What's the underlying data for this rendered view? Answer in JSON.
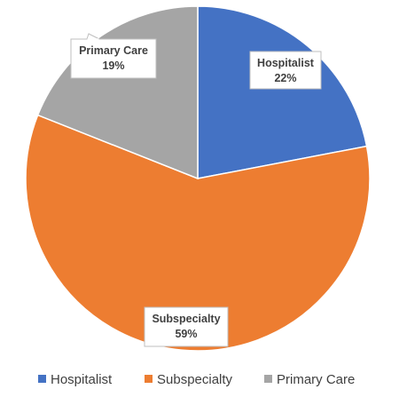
{
  "chart_data": {
    "type": "pie",
    "title": "",
    "categories": [
      "Hospitalist",
      "Subspecialty",
      "Primary Care"
    ],
    "values": [
      22,
      59,
      19
    ],
    "value_labels": [
      "22%",
      "59%",
      "19%"
    ],
    "colors": [
      "#4472c4",
      "#ed7d31",
      "#a5a5a5"
    ],
    "legend": {
      "position": "bottom",
      "entries": [
        "Hospitalist",
        "Subspecialty",
        "Primary Care"
      ]
    },
    "data_labels": "callout boxes with category name and percentage"
  }
}
